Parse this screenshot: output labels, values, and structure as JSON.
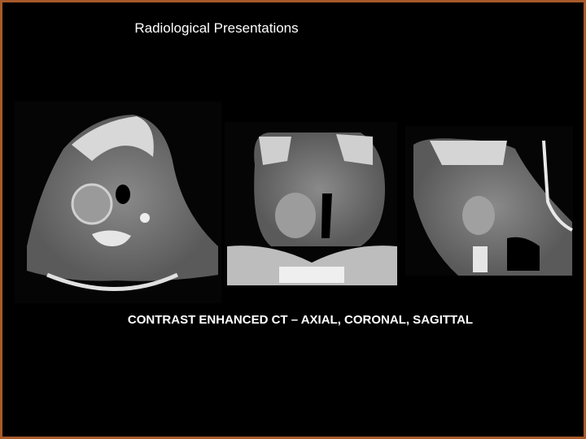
{
  "slide": {
    "title": "Radiological Presentations",
    "caption": "CONTRAST ENHANCED CT – AXIAL, CORONAL, SAGITTAL"
  }
}
